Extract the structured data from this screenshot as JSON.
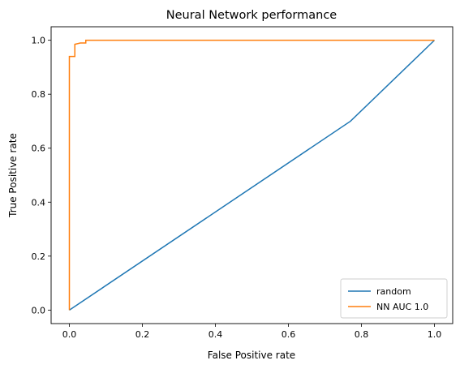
{
  "chart_data": {
    "type": "line",
    "title": "Neural Network performance",
    "xlabel": "False Positive rate",
    "ylabel": "True Positive rate",
    "xlim": [
      -0.05,
      1.05
    ],
    "ylim": [
      -0.05,
      1.05
    ],
    "xticks": [
      0.0,
      0.2,
      0.4,
      0.6,
      0.8,
      1.0
    ],
    "xtick_labels": [
      "0.0",
      "0.2",
      "0.4",
      "0.6",
      "0.8",
      "1.0"
    ],
    "yticks": [
      0.0,
      0.2,
      0.4,
      0.6,
      0.8,
      1.0
    ],
    "ytick_labels": [
      "0.0",
      "0.2",
      "0.4",
      "0.6",
      "0.8",
      "1.0"
    ],
    "grid": false,
    "legend_position": "lower-right",
    "series": [
      {
        "name": "random",
        "color": "#1f77b4",
        "x": [
          0.0,
          0.77,
          1.0
        ],
        "y": [
          0.0,
          0.7,
          1.0
        ]
      },
      {
        "name": "NN AUC 1.0",
        "color": "#ff7f0e",
        "x": [
          0.0,
          0.0,
          0.015,
          0.015,
          0.03,
          0.045,
          0.045,
          1.0
        ],
        "y": [
          0.0,
          0.94,
          0.94,
          0.985,
          0.99,
          0.99,
          1.0,
          1.0
        ]
      }
    ]
  }
}
